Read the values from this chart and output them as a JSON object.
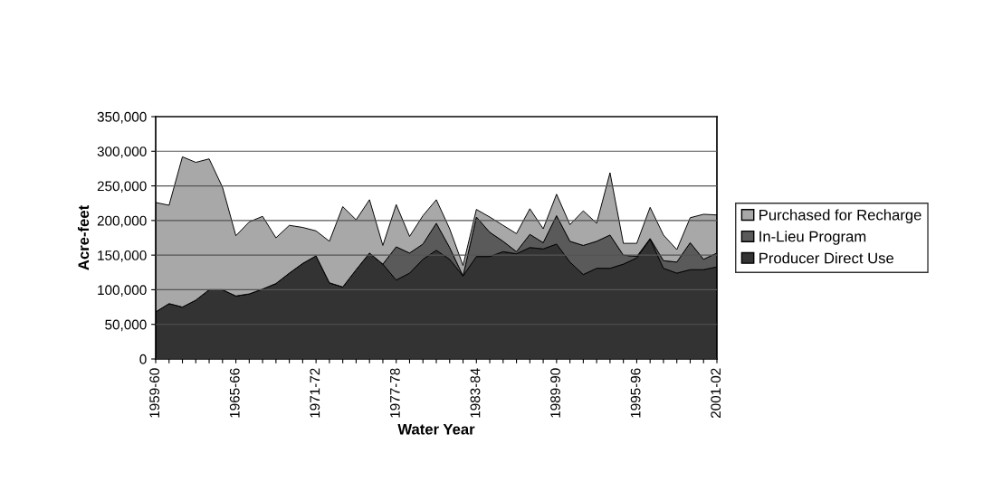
{
  "chart_data": {
    "type": "area",
    "stacked": true,
    "xlabel": "Water Year",
    "ylabel": "Acre-feet",
    "categories": [
      "1959-60",
      null,
      null,
      null,
      null,
      null,
      "1965-66",
      null,
      null,
      null,
      null,
      null,
      "1971-72",
      null,
      null,
      null,
      null,
      null,
      "1977-78",
      null,
      null,
      null,
      null,
      null,
      "1983-84",
      null,
      null,
      null,
      null,
      null,
      "1989-90",
      null,
      null,
      null,
      null,
      null,
      "1995-96",
      null,
      null,
      null,
      null,
      null,
      "2001-02"
    ],
    "series": [
      {
        "name": "Producer Direct Use",
        "color": "#333333",
        "values": [
          68000,
          80000,
          75000,
          85000,
          100000,
          100000,
          91000,
          94000,
          101000,
          109000,
          124000,
          138000,
          149000,
          110000,
          104000,
          129000,
          153000,
          137000,
          114000,
          124000,
          144000,
          157000,
          144000,
          120000,
          148000,
          148000,
          155000,
          152000,
          161000,
          159000,
          166000,
          140000,
          122000,
          131000,
          131000,
          137000,
          146000,
          173000,
          131000,
          124000,
          129000,
          129000,
          133000
        ]
      },
      {
        "name": "In-Lieu Program",
        "color": "#5a5a5a",
        "values": [
          0,
          0,
          0,
          0,
          0,
          0,
          0,
          0,
          0,
          0,
          0,
          0,
          0,
          0,
          0,
          0,
          0,
          0,
          48000,
          29000,
          22000,
          39000,
          17000,
          0,
          57000,
          35000,
          15000,
          3000,
          19000,
          9000,
          41000,
          30000,
          42000,
          39000,
          48000,
          13000,
          2000,
          1000,
          11000,
          16000,
          39000,
          15000,
          20000
        ]
      },
      {
        "name": "Purchased for Recharge",
        "color": "#a8a8a8",
        "values": [
          158000,
          142000,
          217000,
          199000,
          189000,
          148000,
          87000,
          104000,
          105000,
          66000,
          69000,
          52000,
          36000,
          60000,
          116000,
          72000,
          77000,
          27000,
          61000,
          24000,
          41000,
          34000,
          27000,
          15000,
          11000,
          22000,
          23000,
          26000,
          37000,
          20000,
          31000,
          24000,
          50000,
          26000,
          90000,
          17000,
          19000,
          45000,
          37000,
          18000,
          36000,
          65000,
          55000
        ]
      }
    ],
    "ylim": [
      0,
      350000
    ],
    "yticks": [
      0,
      {
        "value": 50000,
        "label": "50,000"
      },
      {
        "value": 100000,
        "label": "100,000"
      },
      {
        "value": 150000,
        "label": "150,000"
      },
      {
        "value": 200000,
        "label": "200,000"
      },
      {
        "value": 250000,
        "label": "250,000"
      },
      {
        "value": 300000,
        "label": "300,000"
      },
      {
        "value": 350000,
        "label": "350,000"
      }
    ],
    "grid": "y",
    "legend": "right"
  }
}
